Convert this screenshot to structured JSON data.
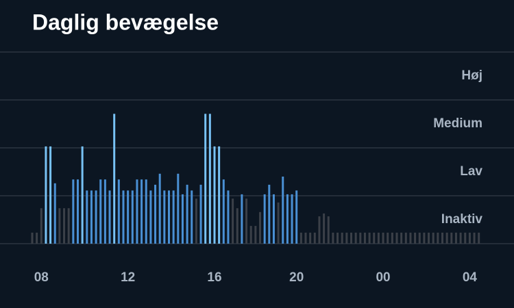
{
  "chart_data": {
    "type": "bar",
    "title": "Daglig bevægelse",
    "categories": [
      null,
      null,
      "08",
      null,
      null,
      null,
      null,
      null,
      null,
      null,
      null,
      null,
      null,
      null,
      null,
      null,
      null,
      null,
      null,
      null,
      null,
      "12",
      null,
      null,
      null,
      null,
      null,
      null,
      null,
      null,
      null,
      null,
      null,
      null,
      null,
      null,
      null,
      null,
      null,
      null,
      "16",
      null,
      null,
      null,
      null,
      null,
      null,
      null,
      null,
      null,
      null,
      null,
      null,
      null,
      null,
      null,
      null,
      null,
      "20",
      null,
      null,
      null,
      null,
      null,
      null,
      null,
      null,
      null,
      null,
      null,
      null,
      null,
      null,
      null,
      null,
      null,
      null,
      "00",
      null,
      null,
      null,
      null,
      null,
      null,
      null,
      null,
      null,
      null,
      null,
      null,
      null,
      null,
      null,
      null,
      null,
      null,
      "04",
      null,
      null
    ],
    "values": [
      0.23,
      0.23,
      0.74,
      2.03,
      2.03,
      1.26,
      0.74,
      0.74,
      0.74,
      1.34,
      1.34,
      2.03,
      1.11,
      1.11,
      1.11,
      1.34,
      1.34,
      1.11,
      2.71,
      1.34,
      1.11,
      1.11,
      1.11,
      1.34,
      1.34,
      1.34,
      1.11,
      1.23,
      1.46,
      1.11,
      1.11,
      1.11,
      1.46,
      1.03,
      1.23,
      1.11,
      0.94,
      1.23,
      2.71,
      2.71,
      2.03,
      2.03,
      1.34,
      1.11,
      0.94,
      0.74,
      1.03,
      0.94,
      0.37,
      0.37,
      0.66,
      1.03,
      1.23,
      1.03,
      0.86,
      1.4,
      1.03,
      1.03,
      1.11,
      0.23,
      0.23,
      0.23,
      0.23,
      0.57,
      0.63,
      0.57,
      0.23,
      0.23,
      0.23,
      0.23,
      0.23,
      0.23,
      0.23,
      0.23,
      0.23,
      0.23,
      0.23,
      0.23,
      0.23,
      0.23,
      0.23,
      0.23,
      0.23,
      0.23,
      0.23,
      0.23,
      0.23,
      0.23,
      0.23,
      0.23,
      0.23,
      0.23,
      0.23,
      0.23,
      0.23,
      0.23,
      0.23,
      0.23,
      0.23
    ],
    "level_colors": [
      "#3b4048",
      "#4a90d4",
      "#78c2f5"
    ],
    "ylim": [
      0,
      4
    ],
    "gridlines": [
      0,
      1,
      2,
      3,
      4
    ],
    "yticks": [
      {
        "value": 0.5,
        "label": "Inaktiv"
      },
      {
        "value": 1.5,
        "label": "Lav"
      },
      {
        "value": 2.5,
        "label": "Medium"
      },
      {
        "value": 3.5,
        "label": "Høj"
      }
    ]
  }
}
